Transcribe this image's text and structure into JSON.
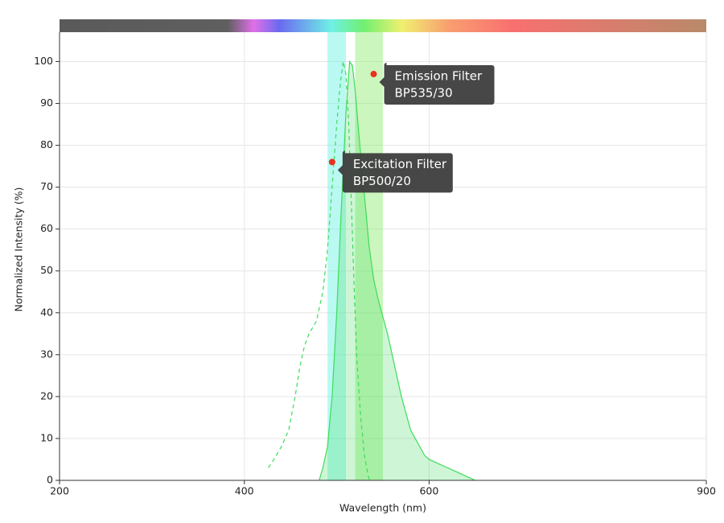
{
  "chart_data": {
    "type": "line",
    "x_label": "Wavelength (nm)",
    "y_label": "Normalized Intensity (%)",
    "xlim": [
      200,
      900
    ],
    "xticks": [
      200,
      400,
      600,
      900
    ],
    "ylim": [
      0,
      107
    ],
    "yticks": [
      0,
      10,
      20,
      30,
      40,
      50,
      60,
      70,
      80,
      90,
      100
    ],
    "grid": true,
    "series": [
      {
        "color": "#3ddc5a",
        "style": "dashed",
        "fill": false,
        "x": [
          426,
          432,
          440,
          448,
          455,
          460,
          465,
          470,
          478,
          485,
          490,
          495,
          500,
          504,
          507,
          510,
          513,
          516,
          519,
          522,
          526,
          530,
          534,
          536
        ],
        "values": [
          3,
          5,
          8,
          12,
          20,
          27,
          32,
          35,
          38,
          45,
          55,
          70,
          85,
          95,
          100,
          97,
          85,
          65,
          45,
          28,
          15,
          6,
          1,
          0
        ]
      },
      {
        "color": "#3ddc5a",
        "style": "solid",
        "fill": true,
        "x": [
          481,
          485,
          490,
          495,
          500,
          505,
          510,
          514,
          517,
          520,
          525,
          530,
          535,
          540,
          545,
          550,
          555,
          558,
          562,
          566,
          570,
          575,
          580,
          585,
          590,
          595,
          600,
          610,
          620,
          630,
          640,
          650
        ],
        "values": [
          0,
          3,
          8,
          20,
          40,
          65,
          88,
          100,
          99,
          93,
          80,
          68,
          56,
          48,
          43,
          39,
          35,
          32,
          28,
          24,
          20,
          16,
          12,
          10,
          8,
          6,
          5,
          4,
          3,
          2,
          1,
          0
        ]
      }
    ],
    "filters": [
      {
        "name": "Excitation Filter",
        "label": "BP500/20",
        "range": [
          490,
          510
        ],
        "color": "#66f2df",
        "marker": [
          495,
          76
        ]
      },
      {
        "name": "Emission Filter",
        "label": "BP535/30",
        "range": [
          520,
          550
        ],
        "color": "#8cec6e",
        "marker": [
          540,
          97
        ]
      }
    ]
  }
}
